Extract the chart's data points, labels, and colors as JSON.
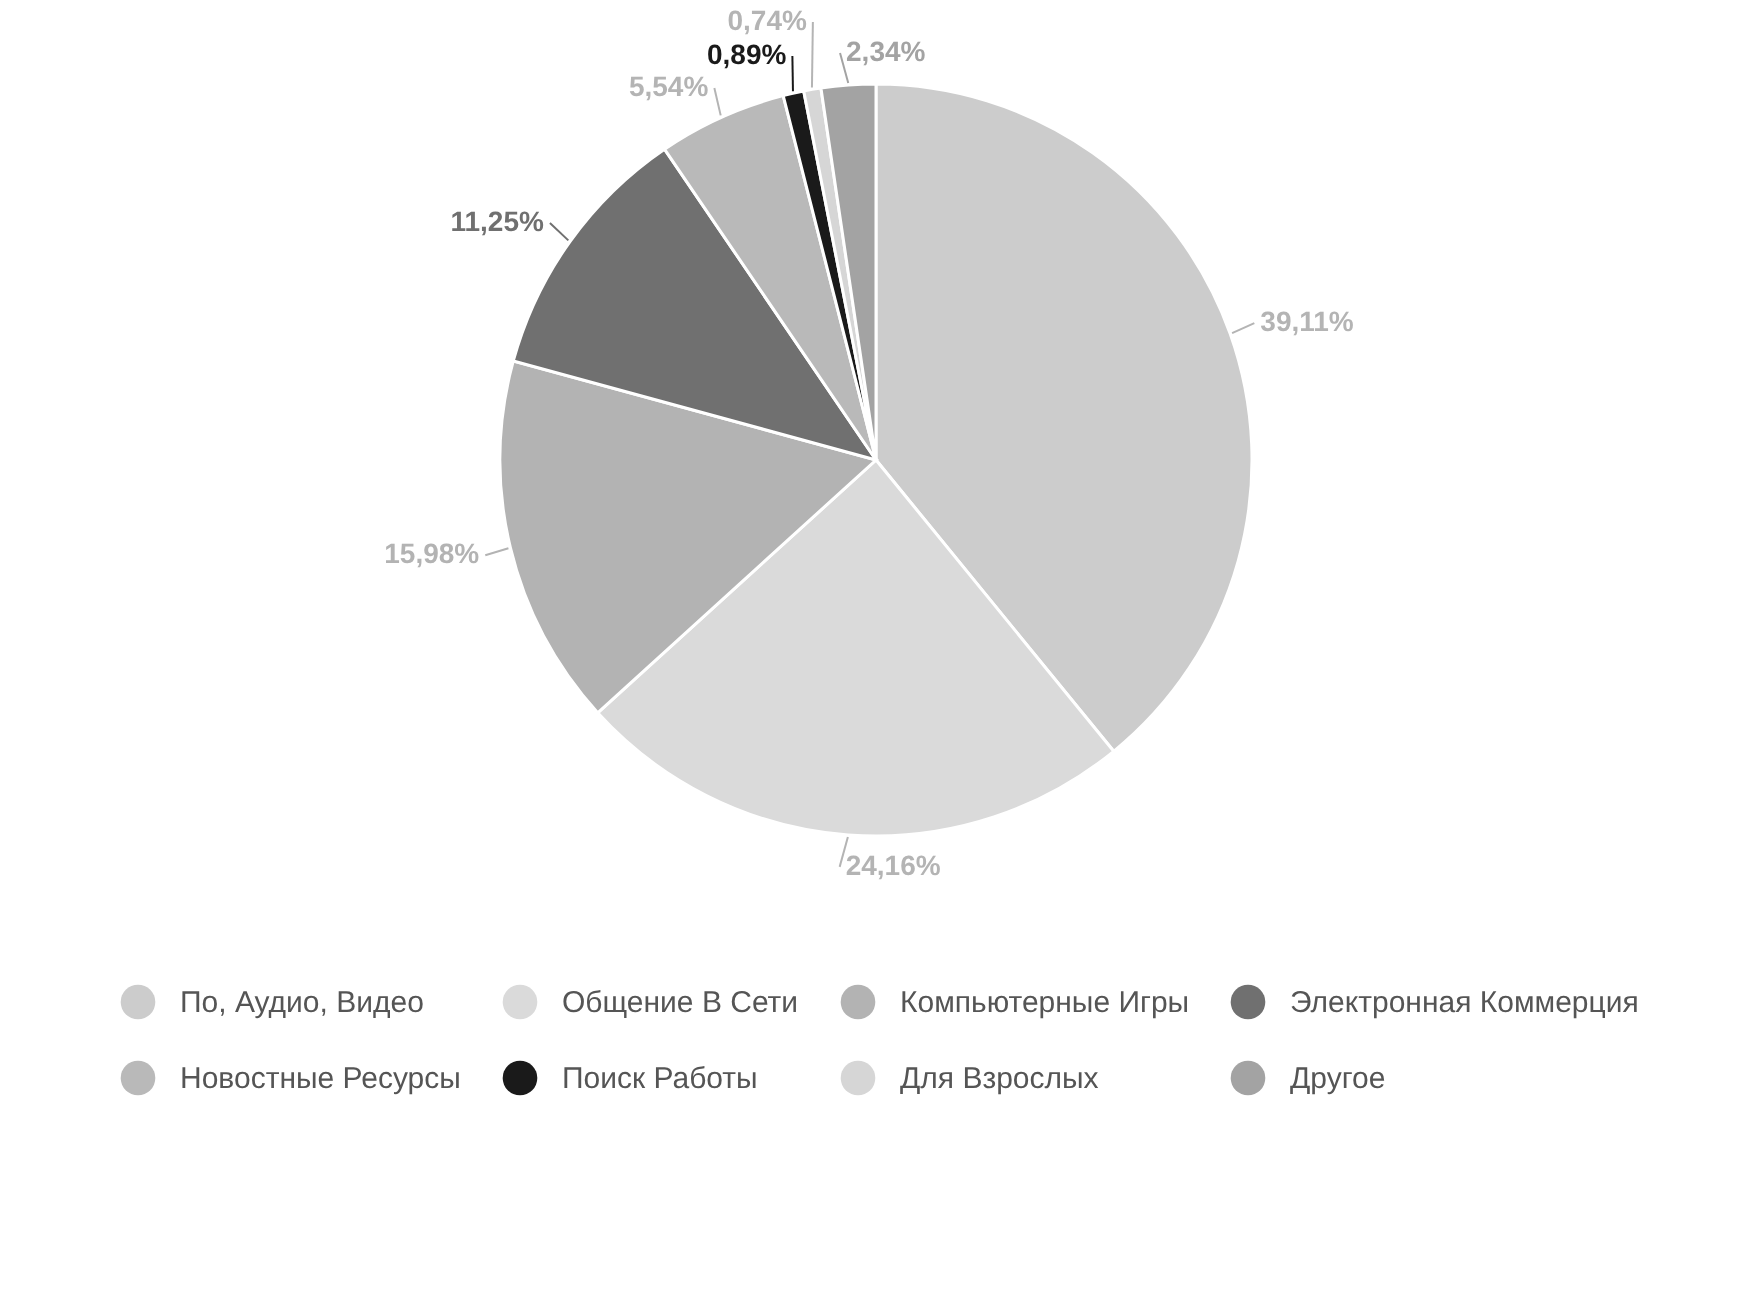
{
  "chart_data": {
    "type": "pie",
    "categories": [
      "По, Аудио, Видео",
      "Общение В Сети",
      "Компьютерные Игры",
      "Электронная Коммерция",
      "Новостные Ресурсы",
      "Поиск Работы",
      "Для Взрослых",
      "Другое"
    ],
    "values": [
      39.11,
      24.16,
      15.98,
      11.25,
      5.54,
      0.89,
      0.74,
      2.34
    ],
    "colors": [
      "#cccccc",
      "#dadada",
      "#b3b3b3",
      "#707070",
      "#b9b9b9",
      "#1a1a1a",
      "#d6d6d6",
      "#a3a3a3"
    ],
    "value_labels": [
      "39,11%",
      "24,16%",
      "15,98%",
      "11,25%",
      "5,54%",
      "0,89%",
      "0,74%",
      "2,34%"
    ],
    "legend": "bottom"
  }
}
